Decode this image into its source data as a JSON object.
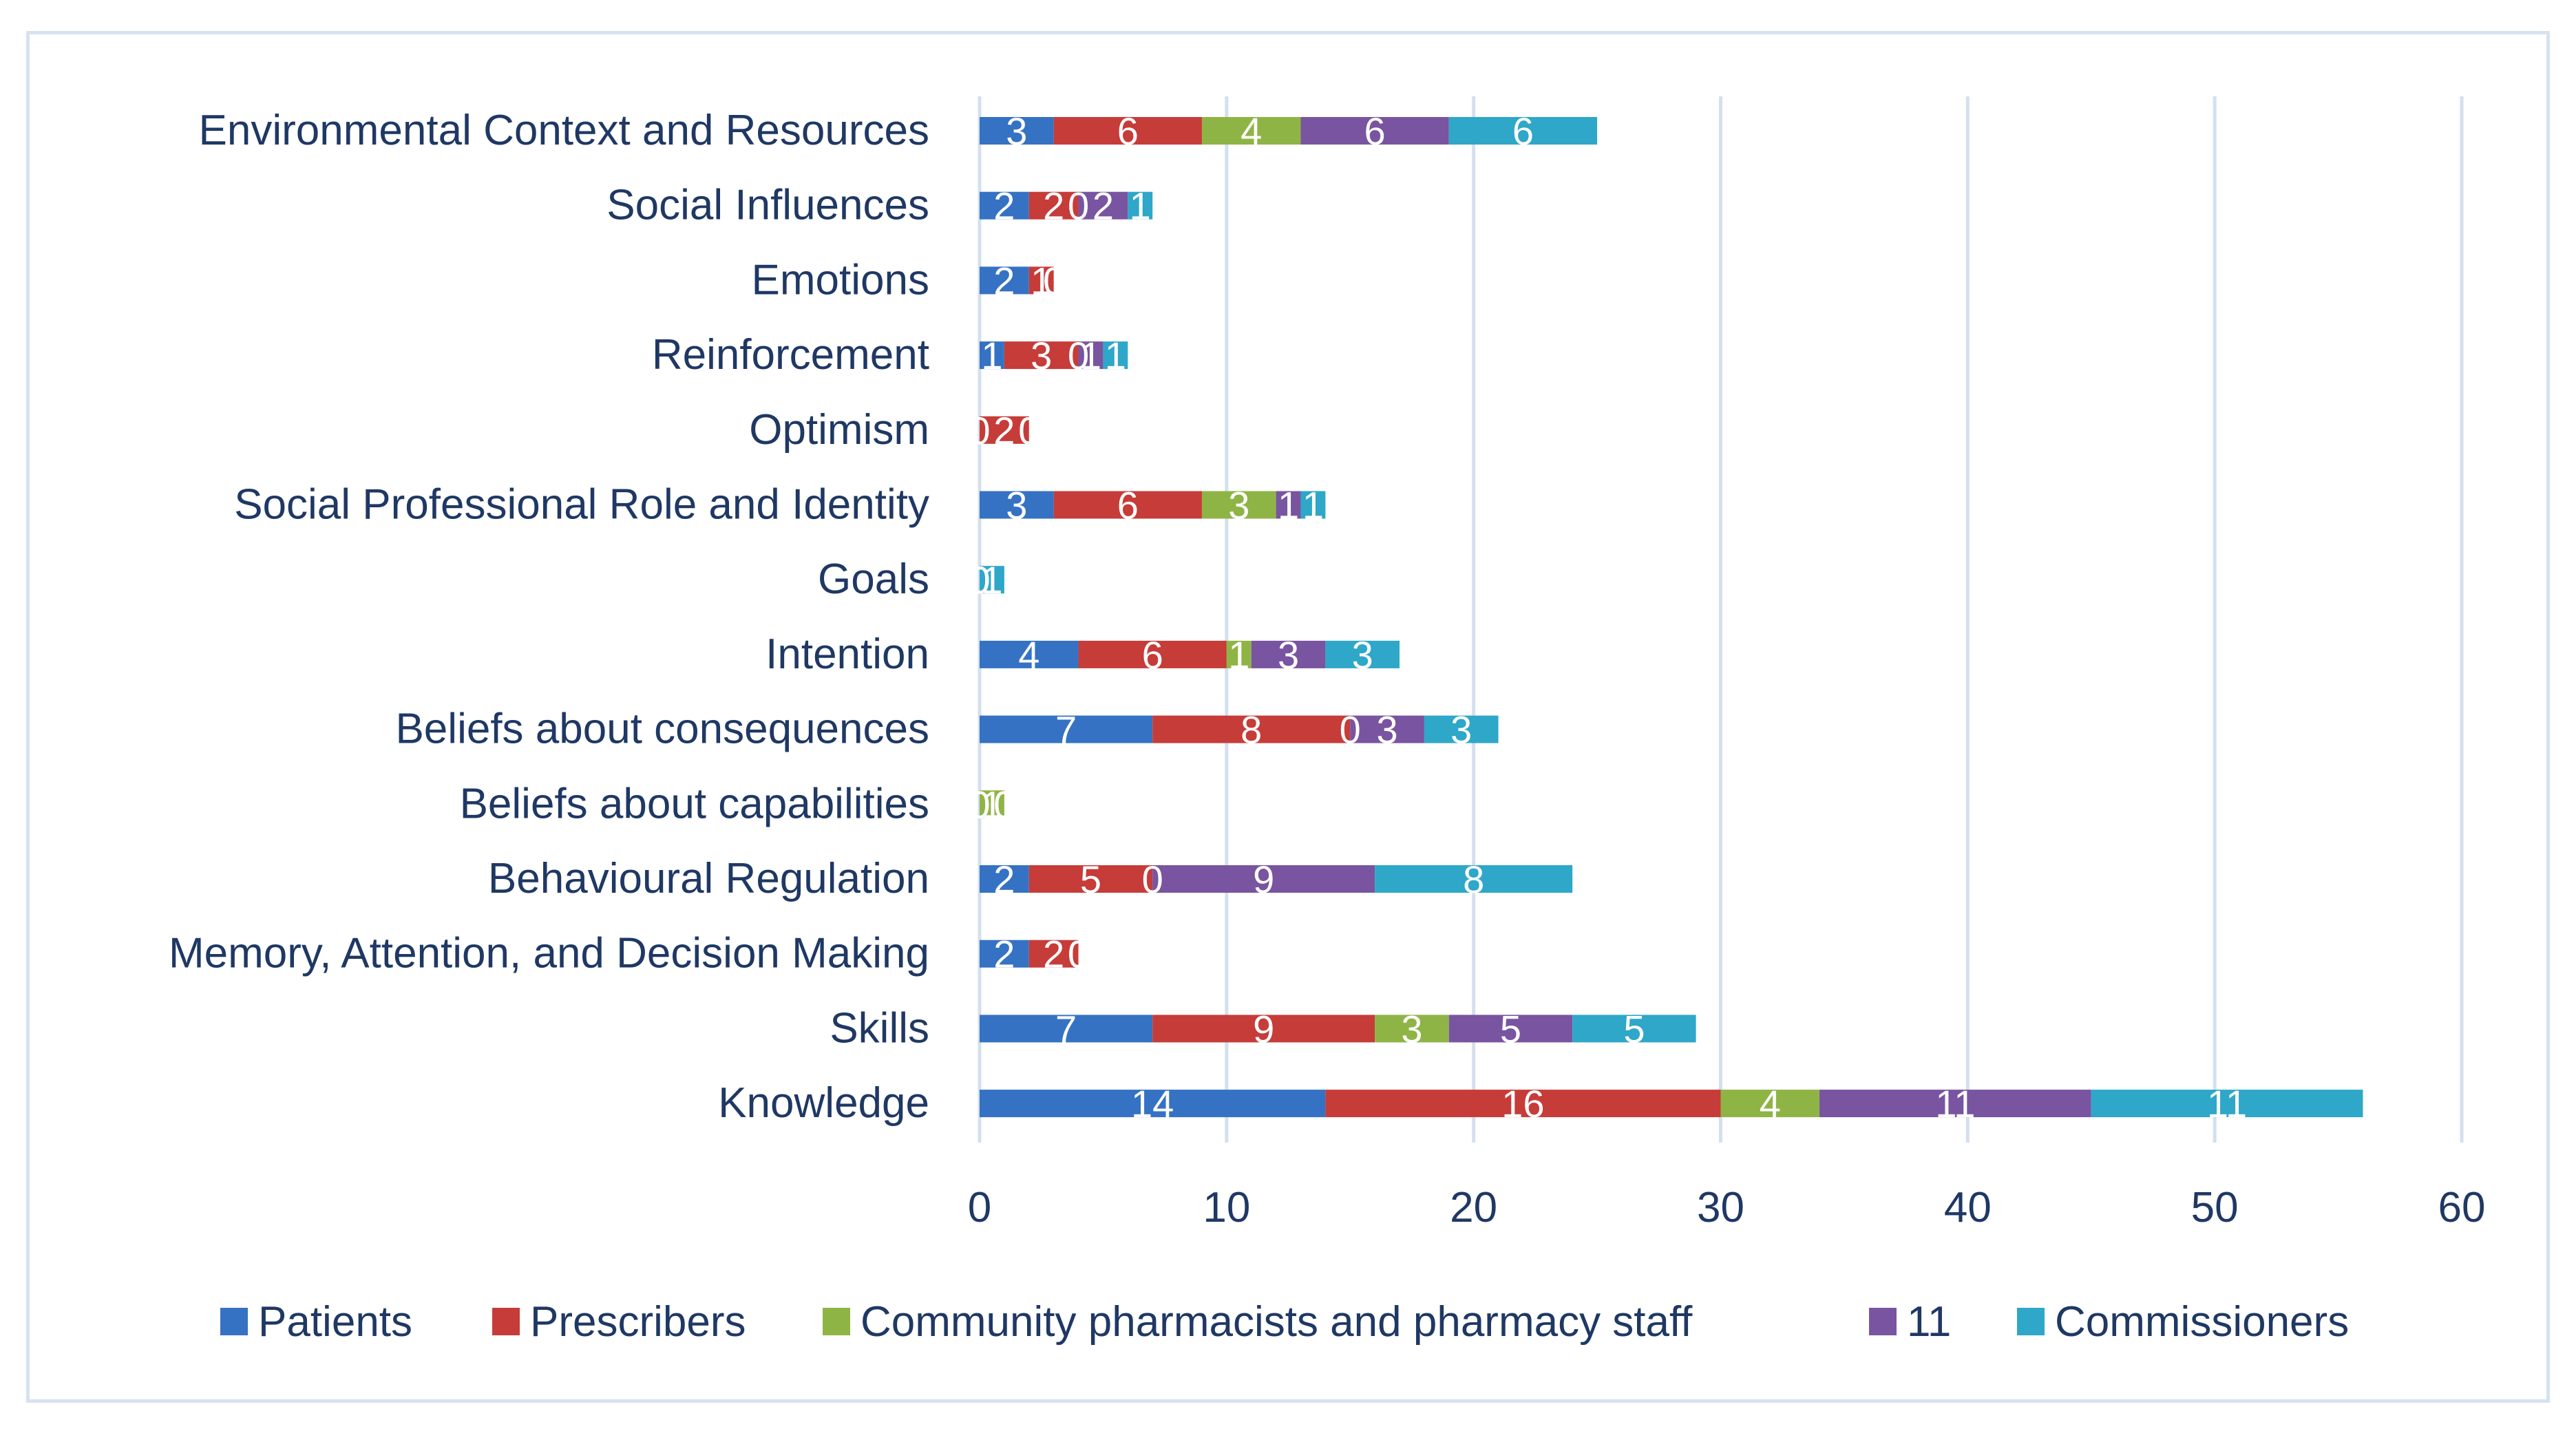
{
  "chart_data": {
    "type": "bar",
    "orientation": "horizontal",
    "stacked": true,
    "title": "",
    "xlabel": "",
    "ylabel": "",
    "xlim": [
      0,
      60
    ],
    "x_ticks": [
      0,
      10,
      20,
      30,
      40,
      50,
      60
    ],
    "grid": true,
    "legend_position": "bottom",
    "categories": [
      "Environmental Context and Resources",
      "Social Influences",
      "Emotions",
      "Reinforcement",
      "Optimism",
      "Social Professional Role and Identity",
      "Goals",
      "Intention",
      "Beliefs about consequences",
      "Beliefs about capabilities",
      "Behavioural Regulation",
      "Memory, Attention, and Decision Making",
      "Skills",
      "Knowledge"
    ],
    "series": [
      {
        "name": "Patients",
        "color": "#3572c3",
        "values": [
          3,
          2,
          2,
          1,
          0,
          3,
          0,
          4,
          7,
          0,
          2,
          2,
          7,
          14
        ]
      },
      {
        "name": "Prescribers",
        "color": "#c63c39",
        "values": [
          6,
          2,
          1,
          3,
          2,
          6,
          0,
          6,
          8,
          0,
          5,
          2,
          9,
          16
        ]
      },
      {
        "name": "Community pharmacists and pharmacy staff",
        "color": "#8fb446",
        "values": [
          4,
          0,
          0,
          0,
          0,
          3,
          0,
          1,
          0,
          1,
          0,
          0,
          3,
          4
        ]
      },
      {
        "name": "11",
        "color": "#7954a0",
        "values": [
          6,
          2,
          0,
          1,
          0,
          1,
          0,
          3,
          3,
          0,
          9,
          0,
          5,
          11
        ]
      },
      {
        "name": "Commissioners",
        "color": "#2ea7c8",
        "values": [
          6,
          1,
          0,
          1,
          0,
          1,
          1,
          3,
          3,
          0,
          8,
          0,
          5,
          11
        ]
      }
    ]
  }
}
